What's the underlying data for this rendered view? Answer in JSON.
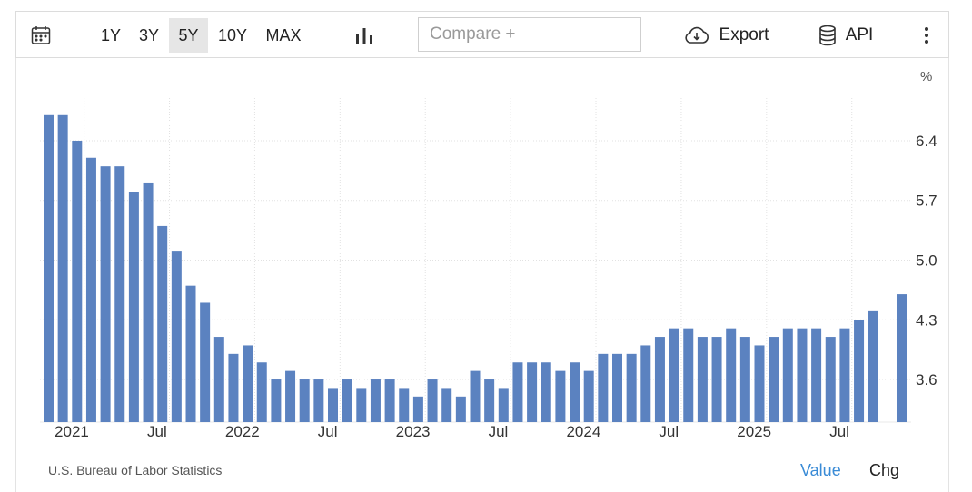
{
  "toolbar": {
    "ranges": [
      "1Y",
      "3Y",
      "5Y",
      "10Y",
      "MAX"
    ],
    "active_range": "5Y",
    "compare_placeholder": "Compare +",
    "export_label": "Export",
    "api_label": "API"
  },
  "chart_data": {
    "type": "bar",
    "unit": "%",
    "ylim": [
      3.1,
      6.9
    ],
    "y_ticks": [
      3.6,
      4.3,
      5.0,
      5.7,
      6.4
    ],
    "y_tick_labels": [
      "3.6",
      "4.3",
      "5.0",
      "5.7",
      "6.4"
    ],
    "x_tick_labels": [
      {
        "label": "2021",
        "index": 2
      },
      {
        "label": "Jul",
        "index": 8
      },
      {
        "label": "2022",
        "index": 14
      },
      {
        "label": "Jul",
        "index": 20
      },
      {
        "label": "2023",
        "index": 26
      },
      {
        "label": "Jul",
        "index": 32
      },
      {
        "label": "2024",
        "index": 38
      },
      {
        "label": "Jul",
        "index": 44
      },
      {
        "label": "2025",
        "index": 50
      },
      {
        "label": "Jul",
        "index": 56
      }
    ],
    "values": [
      6.7,
      6.7,
      6.4,
      6.2,
      6.1,
      6.1,
      5.8,
      5.9,
      5.4,
      5.1,
      4.7,
      4.5,
      4.1,
      3.9,
      4.0,
      3.8,
      3.6,
      3.7,
      3.6,
      3.6,
      3.5,
      3.6,
      3.5,
      3.6,
      3.6,
      3.5,
      3.4,
      3.6,
      3.5,
      3.4,
      3.7,
      3.6,
      3.5,
      3.8,
      3.8,
      3.8,
      3.7,
      3.8,
      3.7,
      3.9,
      3.9,
      3.9,
      4.0,
      4.1,
      4.2,
      4.2,
      4.1,
      4.1,
      4.2,
      4.1,
      4.0,
      4.1,
      4.2,
      4.2,
      4.2,
      4.1,
      4.2,
      4.3,
      4.4,
      null,
      4.6
    ],
    "bar_color": "#5b82c0",
    "grid": true,
    "source": "U.S. Bureau of Labor Statistics",
    "modes": [
      "Value",
      "Chg"
    ],
    "active_mode": "Value"
  }
}
